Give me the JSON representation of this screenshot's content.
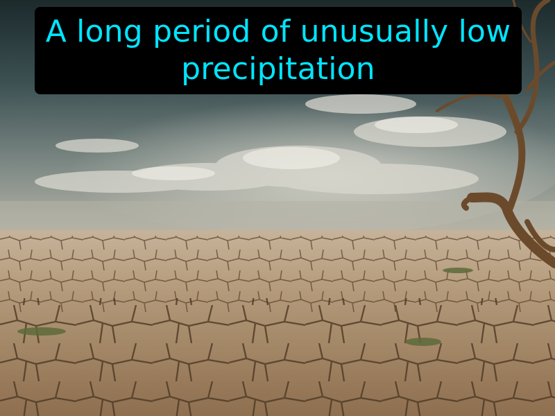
{
  "caption": {
    "text": "A long period of unusually low precipitation",
    "color": "#00e5ff",
    "background": "#000000"
  },
  "scene": {
    "subject": "drought-landscape",
    "sky_color": "#3c5052",
    "ground_color": "#a98f6f",
    "tree_color": "#6b4a2c"
  }
}
